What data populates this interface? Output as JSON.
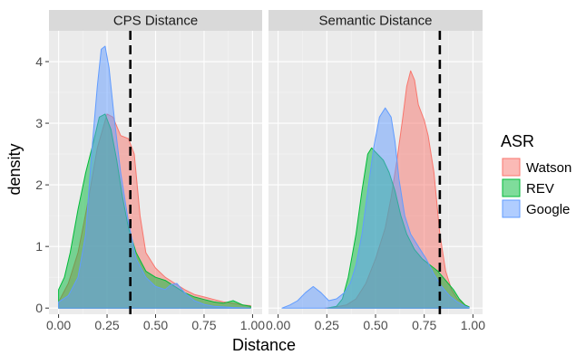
{
  "chart_data": {
    "type": "area",
    "xlabel": "Distance",
    "ylabel": "density",
    "xlim": [
      0,
      1.0
    ],
    "ylim": [
      -0.1,
      4.5
    ],
    "x_ticks": [
      0,
      0.25,
      0.5,
      0.75,
      1.0
    ],
    "x_tick_labels": [
      "0.00",
      "0.25",
      "0.50",
      "0.75",
      "1.00"
    ],
    "y_ticks": [
      0,
      1,
      2,
      3,
      4
    ],
    "y_tick_labels": [
      "0",
      "1",
      "2",
      "3",
      "4"
    ],
    "grid": true,
    "legend": {
      "title": "ASR",
      "position": "right",
      "entries": [
        {
          "name": "Watson",
          "fill": "#F8766D"
        },
        {
          "name": "REV",
          "fill": "#00BA38"
        },
        {
          "name": "Google",
          "fill": "#619CFF"
        }
      ]
    },
    "panels": [
      {
        "title": "CPS Distance",
        "vline_x": 0.37,
        "series": [
          {
            "name": "Watson",
            "points": [
              [
                0.0,
                0.1
              ],
              [
                0.05,
                0.4
              ],
              [
                0.1,
                0.9
              ],
              [
                0.15,
                1.7
              ],
              [
                0.2,
                2.6
              ],
              [
                0.25,
                3.15
              ],
              [
                0.28,
                3.1
              ],
              [
                0.32,
                2.8
              ],
              [
                0.36,
                2.75
              ],
              [
                0.39,
                2.5
              ],
              [
                0.42,
                1.5
              ],
              [
                0.45,
                0.9
              ],
              [
                0.5,
                0.65
              ],
              [
                0.55,
                0.5
              ],
              [
                0.6,
                0.4
              ],
              [
                0.65,
                0.3
              ],
              [
                0.7,
                0.22
              ],
              [
                0.75,
                0.18
              ],
              [
                0.8,
                0.14
              ],
              [
                0.85,
                0.1
              ],
              [
                0.9,
                0.08
              ],
              [
                0.95,
                0.05
              ],
              [
                0.99,
                0.04
              ]
            ]
          },
          {
            "name": "REV",
            "points": [
              [
                0.0,
                0.3
              ],
              [
                0.03,
                0.5
              ],
              [
                0.06,
                0.9
              ],
              [
                0.1,
                1.6
              ],
              [
                0.14,
                2.2
              ],
              [
                0.18,
                2.7
              ],
              [
                0.21,
                3.1
              ],
              [
                0.24,
                3.15
              ],
              [
                0.27,
                2.9
              ],
              [
                0.3,
                2.4
              ],
              [
                0.33,
                1.8
              ],
              [
                0.36,
                1.3
              ],
              [
                0.4,
                0.9
              ],
              [
                0.45,
                0.6
              ],
              [
                0.5,
                0.5
              ],
              [
                0.55,
                0.45
              ],
              [
                0.6,
                0.35
              ],
              [
                0.65,
                0.25
              ],
              [
                0.7,
                0.18
              ],
              [
                0.75,
                0.14
              ],
              [
                0.8,
                0.1
              ],
              [
                0.85,
                0.08
              ],
              [
                0.9,
                0.12
              ],
              [
                0.95,
                0.05
              ],
              [
                0.99,
                0.03
              ]
            ]
          },
          {
            "name": "Google",
            "points": [
              [
                0.0,
                0.1
              ],
              [
                0.05,
                0.2
              ],
              [
                0.1,
                0.5
              ],
              [
                0.14,
                1.2
              ],
              [
                0.17,
                2.5
              ],
              [
                0.2,
                3.6
              ],
              [
                0.22,
                4.2
              ],
              [
                0.24,
                4.25
              ],
              [
                0.26,
                3.9
              ],
              [
                0.29,
                3.0
              ],
              [
                0.32,
                2.2
              ],
              [
                0.36,
                1.4
              ],
              [
                0.4,
                0.8
              ],
              [
                0.45,
                0.5
              ],
              [
                0.5,
                0.35
              ],
              [
                0.55,
                0.3
              ],
              [
                0.58,
                0.38
              ],
              [
                0.61,
                0.4
              ],
              [
                0.65,
                0.25
              ],
              [
                0.7,
                0.12
              ],
              [
                0.75,
                0.06
              ],
              [
                0.8,
                0.03
              ],
              [
                0.9,
                0.01
              ],
              [
                0.99,
                0.0
              ]
            ]
          }
        ]
      },
      {
        "title": "Semantic Distance",
        "vline_x": 0.83,
        "series": [
          {
            "name": "Watson",
            "points": [
              [
                0.24,
                0.0
              ],
              [
                0.3,
                0.02
              ],
              [
                0.35,
                0.05
              ],
              [
                0.4,
                0.15
              ],
              [
                0.45,
                0.4
              ],
              [
                0.5,
                0.8
              ],
              [
                0.55,
                1.3
              ],
              [
                0.58,
                1.8
              ],
              [
                0.61,
                2.4
              ],
              [
                0.64,
                3.1
              ],
              [
                0.66,
                3.6
              ],
              [
                0.68,
                3.85
              ],
              [
                0.7,
                3.7
              ],
              [
                0.72,
                3.3
              ],
              [
                0.75,
                3.05
              ],
              [
                0.77,
                2.8
              ],
              [
                0.8,
                2.2
              ],
              [
                0.83,
                1.2
              ],
              [
                0.86,
                0.6
              ],
              [
                0.89,
                0.3
              ],
              [
                0.92,
                0.15
              ],
              [
                0.96,
                0.05
              ],
              [
                0.98,
                0.02
              ]
            ]
          },
          {
            "name": "REV",
            "points": [
              [
                0.25,
                0.0
              ],
              [
                0.3,
                0.03
              ],
              [
                0.33,
                0.15
              ],
              [
                0.36,
                0.5
              ],
              [
                0.4,
                1.2
              ],
              [
                0.43,
                1.9
              ],
              [
                0.46,
                2.5
              ],
              [
                0.48,
                2.6
              ],
              [
                0.51,
                2.5
              ],
              [
                0.54,
                2.4
              ],
              [
                0.57,
                2.2
              ],
              [
                0.6,
                1.9
              ],
              [
                0.63,
                1.5
              ],
              [
                0.66,
                1.2
              ],
              [
                0.7,
                0.95
              ],
              [
                0.74,
                0.8
              ],
              [
                0.78,
                0.7
              ],
              [
                0.82,
                0.6
              ],
              [
                0.86,
                0.45
              ],
              [
                0.9,
                0.3
              ],
              [
                0.93,
                0.15
              ],
              [
                0.96,
                0.05
              ],
              [
                0.98,
                0.02
              ]
            ]
          },
          {
            "name": "Google",
            "points": [
              [
                0.02,
                0.0
              ],
              [
                0.06,
                0.05
              ],
              [
                0.1,
                0.12
              ],
              [
                0.14,
                0.25
              ],
              [
                0.18,
                0.35
              ],
              [
                0.22,
                0.25
              ],
              [
                0.26,
                0.12
              ],
              [
                0.3,
                0.15
              ],
              [
                0.34,
                0.25
              ],
              [
                0.37,
                0.4
              ],
              [
                0.4,
                0.7
              ],
              [
                0.43,
                1.2
              ],
              [
                0.46,
                1.9
              ],
              [
                0.49,
                2.6
              ],
              [
                0.52,
                3.1
              ],
              [
                0.55,
                3.25
              ],
              [
                0.58,
                3.1
              ],
              [
                0.6,
                2.7
              ],
              [
                0.62,
                2.1
              ],
              [
                0.65,
                1.5
              ],
              [
                0.68,
                1.2
              ],
              [
                0.72,
                1.0
              ],
              [
                0.76,
                0.8
              ],
              [
                0.8,
                0.55
              ],
              [
                0.84,
                0.35
              ],
              [
                0.88,
                0.2
              ],
              [
                0.92,
                0.1
              ],
              [
                0.96,
                0.03
              ],
              [
                0.98,
                0.01
              ]
            ]
          }
        ]
      }
    ]
  }
}
